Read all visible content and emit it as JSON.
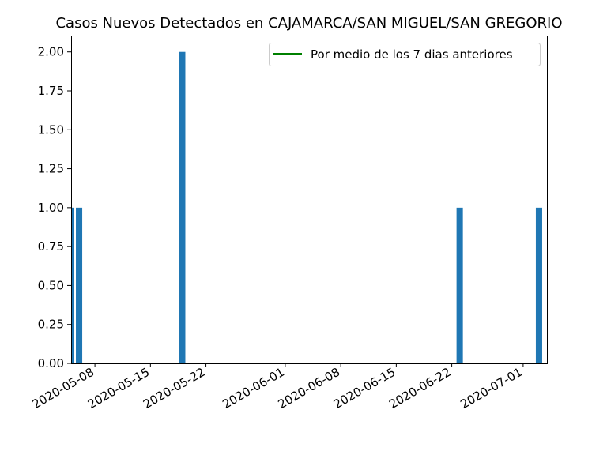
{
  "chart_data": {
    "type": "bar",
    "title": "Casos Nuevos Detectados en CAJAMARCA/SAN MIGUEL/SAN GREGORIO",
    "xlabel": "",
    "ylabel": "",
    "x_dates": [
      "2020-05-05",
      "2020-05-06",
      "2020-05-19",
      "2020-06-23",
      "2020-07-03"
    ],
    "values": [
      1,
      1,
      2,
      1,
      1
    ],
    "xlim": [
      "2020-05-05",
      "2020-07-04"
    ],
    "ylim": [
      0,
      2.1
    ],
    "x_ticks": [
      "2020-05-08",
      "2020-05-15",
      "2020-05-22",
      "2020-06-01",
      "2020-06-08",
      "2020-06-15",
      "2020-06-22",
      "2020-07-01"
    ],
    "y_ticks": [
      "0.00",
      "0.25",
      "0.50",
      "0.75",
      "1.00",
      "1.25",
      "1.50",
      "1.75",
      "2.00"
    ],
    "legend": {
      "label": "Por medio de los 7 dias anteriores",
      "placement": "top-right"
    },
    "grid": false,
    "colors": {
      "bar": "#1f77b4",
      "line": "#008000"
    }
  }
}
